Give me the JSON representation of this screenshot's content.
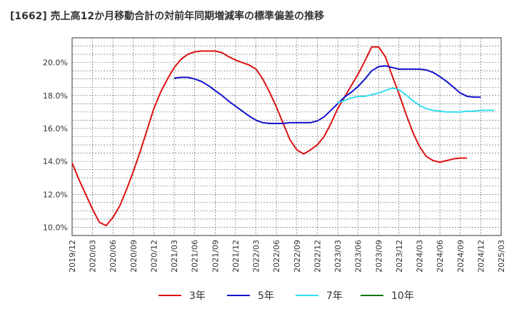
{
  "title": "[1662]  売上高12か月移動合計の対前年同期増減率の標準偏差の推移",
  "chart_data": {
    "type": "line",
    "title": "[1662]  売上高12か月移動合計の対前年同期増減率の標準偏差の推移",
    "xlabel": "",
    "ylabel": "",
    "x_ticks": [
      "2019/12",
      "2020/03",
      "2020/06",
      "2020/09",
      "2020/12",
      "2021/03",
      "2021/06",
      "2021/09",
      "2021/12",
      "2022/03",
      "2022/06",
      "2022/09",
      "2022/12",
      "2023/03",
      "2023/06",
      "2023/09",
      "2023/12",
      "2024/03",
      "2024/06",
      "2024/09",
      "2024/12",
      "2025/03"
    ],
    "y_ticks": [
      "10.0%",
      "12.0%",
      "14.0%",
      "16.0%",
      "18.0%",
      "20.0%"
    ],
    "ylim": [
      9.5,
      21.5
    ],
    "grid": true,
    "legend_position": "bottom",
    "colors": {
      "3年": "#dd1111",
      "5年": "#1111cc",
      "7年": "#33ddee",
      "10年": "#117711"
    },
    "series": [
      {
        "name": "3年",
        "color": "#dd1111",
        "start": "2019/12",
        "values": [
          13.9,
          12.9,
          12.0,
          11.1,
          10.3,
          10.1,
          10.6,
          11.3,
          12.3,
          13.4,
          14.6,
          15.9,
          17.2,
          18.2,
          19.0,
          19.7,
          20.2,
          20.5,
          20.65,
          20.7,
          20.7,
          20.7,
          20.6,
          20.35,
          20.15,
          20.0,
          19.85,
          19.6,
          19.0,
          18.2,
          17.3,
          16.3,
          15.3,
          14.7,
          14.45,
          14.7,
          15.0,
          15.5,
          16.3,
          17.2,
          17.9,
          18.6,
          19.3,
          20.1,
          20.95,
          20.95,
          20.35,
          19.2,
          18.1,
          16.9,
          15.8,
          14.9,
          14.3,
          14.05,
          13.95,
          14.05,
          14.15,
          14.2,
          14.2
        ]
      },
      {
        "name": "5年",
        "color": "#1111cc",
        "start": "2021/03",
        "values": [
          19.05,
          19.1,
          19.1,
          19.0,
          18.85,
          18.6,
          18.3,
          18.0,
          17.65,
          17.35,
          17.05,
          16.75,
          16.5,
          16.35,
          16.3,
          16.3,
          16.3,
          16.35,
          16.35,
          16.35,
          16.35,
          16.45,
          16.7,
          17.1,
          17.5,
          17.9,
          18.2,
          18.55,
          19.0,
          19.5,
          19.75,
          19.8,
          19.7,
          19.6,
          19.6,
          19.6,
          19.6,
          19.55,
          19.4,
          19.15,
          18.85,
          18.5,
          18.15,
          17.95,
          17.9,
          17.9
        ]
      },
      {
        "name": "7年",
        "color": "#33ddee",
        "start": "2023/03",
        "values": [
          17.55,
          17.7,
          17.85,
          17.95,
          17.95,
          18.05,
          18.15,
          18.3,
          18.45,
          18.35,
          18.05,
          17.7,
          17.4,
          17.2,
          17.1,
          17.05,
          17.0,
          17.0,
          17.0,
          17.05,
          17.05,
          17.1,
          17.1,
          17.1
        ]
      },
      {
        "name": "10年",
        "color": "#117711",
        "start": "2024/12",
        "values": []
      }
    ]
  },
  "legend": [
    {
      "label": "3年",
      "color": "#dd1111"
    },
    {
      "label": "5年",
      "color": "#1111cc"
    },
    {
      "label": "7年",
      "color": "#33ddee"
    },
    {
      "label": "10年",
      "color": "#117711"
    }
  ]
}
